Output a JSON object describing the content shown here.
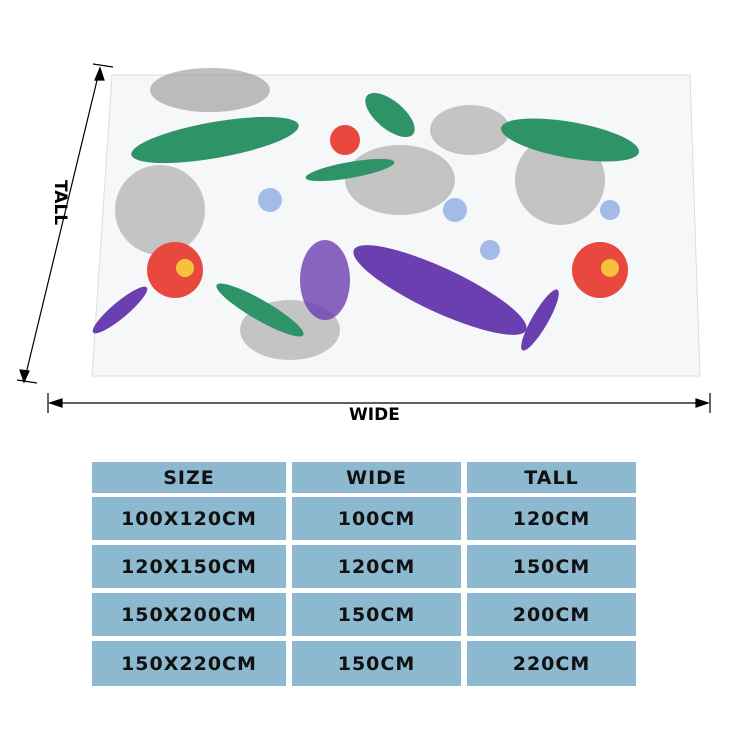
{
  "labels": {
    "wide": "WIDE",
    "tall": "TALL"
  },
  "table": {
    "headers": [
      "SIZE",
      "WIDE",
      "TALL"
    ],
    "rows": [
      [
        "100X120CM",
        "100CM",
        "120CM"
      ],
      [
        "120X150CM",
        "120CM",
        "150CM"
      ],
      [
        "150X200CM",
        "150CM",
        "200CM"
      ],
      [
        "150X220CM",
        "150CM",
        "220CM"
      ]
    ]
  },
  "colors": {
    "table_cell": "#8cb9d0",
    "fern_green": "#2e9468",
    "fern_purple": "#6a3fb0",
    "flower_red": "#e9483e"
  }
}
